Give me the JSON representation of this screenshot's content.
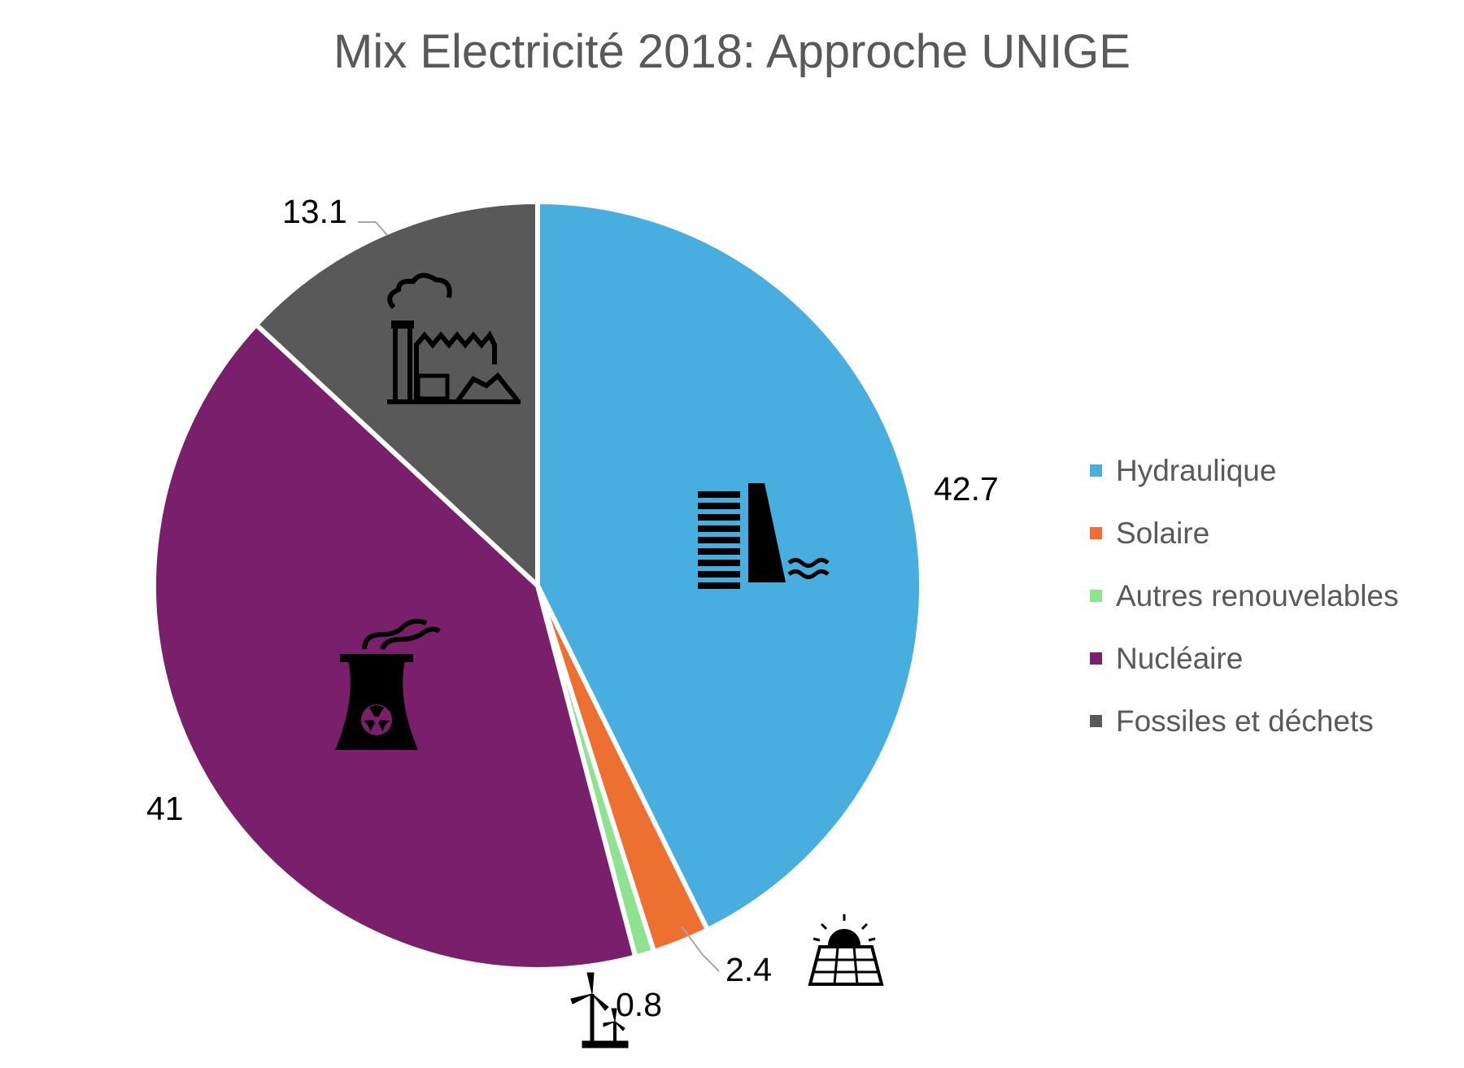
{
  "chart_data": {
    "type": "pie",
    "title": "Mix Electricité 2018: Approche UNIGE",
    "categories": [
      "Hydraulique",
      "Solaire",
      "Autres renouvelables",
      "Nucléaire",
      "Fossiles et déchets"
    ],
    "values": [
      42.7,
      2.4,
      0.8,
      41,
      13.1
    ],
    "data_labels": [
      "42.7",
      "2.4",
      "0.8",
      "41",
      "13.1"
    ],
    "colors": [
      "#48aee0",
      "#ed7031",
      "#8de38f",
      "#7a1f6b",
      "#595959"
    ],
    "icons": [
      "dam-icon",
      "solar-panel-icon",
      "wind-turbine-icon",
      "nuclear-plant-icon",
      "factory-icon"
    ],
    "legend_position": "right",
    "start_angle": "12 o'clock",
    "direction": "clockwise"
  }
}
